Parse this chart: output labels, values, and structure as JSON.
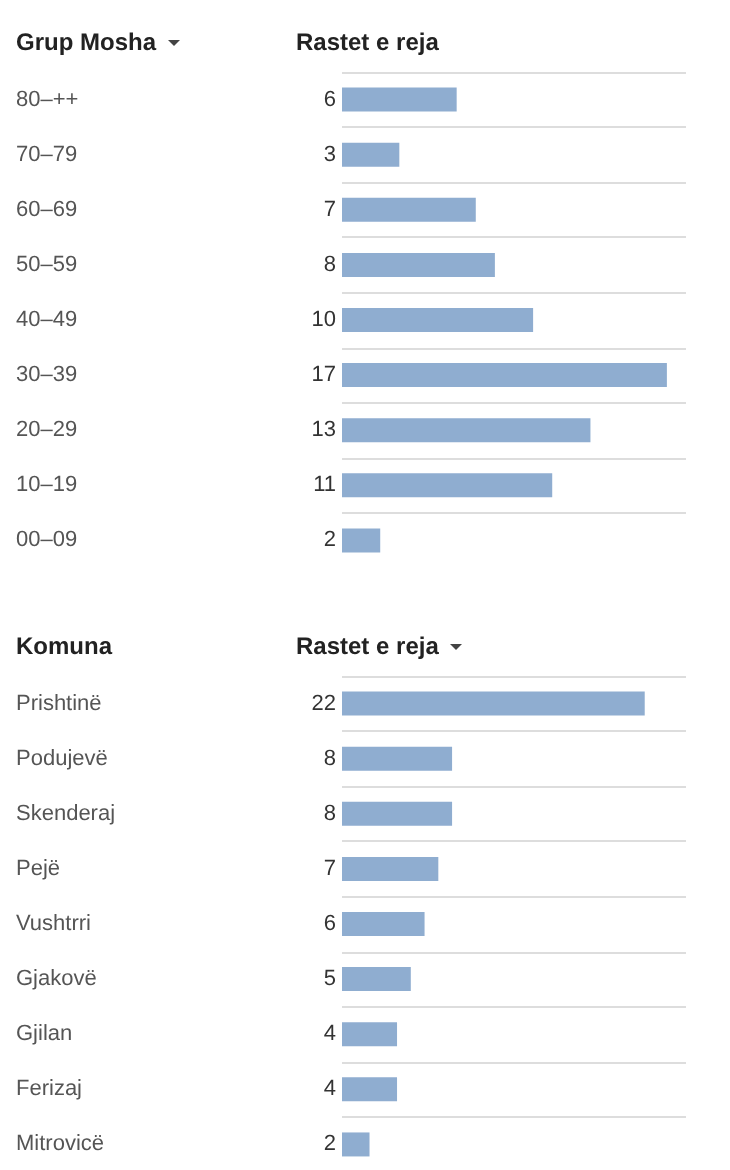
{
  "chart_data": [
    {
      "type": "bar",
      "orientation": "horizontal",
      "ylabel": "Grup Mosha",
      "xlabel": "Rastet e reja",
      "categories": [
        "80–++",
        "70–79",
        "60–69",
        "50–59",
        "40–49",
        "30–39",
        "20–29",
        "10–19",
        "00–09"
      ],
      "values": [
        6,
        3,
        7,
        8,
        10,
        17,
        13,
        11,
        2
      ],
      "color": "#8fadd0",
      "data_labels": true,
      "grid": "y"
    },
    {
      "type": "bar",
      "orientation": "horizontal",
      "ylabel": "Komuna",
      "xlabel": "Rastet e reja",
      "categories": [
        "Prishtinë",
        "Podujevë",
        "Skenderaj",
        "Pejë",
        "Vushtrri",
        "Gjakovë",
        "Gjilan",
        "Ferizaj",
        "Mitrovicë"
      ],
      "values": [
        22,
        8,
        8,
        7,
        6,
        5,
        4,
        4,
        2
      ],
      "color": "#8fadd0",
      "data_labels": true,
      "grid": "y"
    }
  ]
}
